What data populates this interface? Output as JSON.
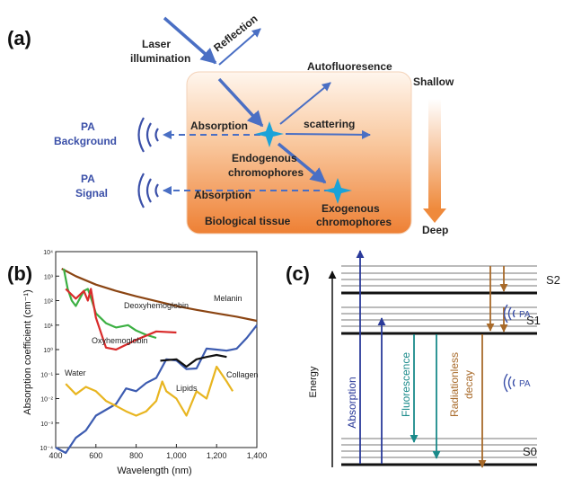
{
  "panel_a": {
    "label": "(a)",
    "laser": [
      "Laser",
      "illumination"
    ],
    "reflection": "Reflection",
    "autofluorescence": "Autofluoresence",
    "shallow": "Shallow",
    "deep": "Deep",
    "absorption1": "Absorption",
    "absorption2": "Absorption",
    "scattering": "scattering",
    "endogenous": [
      "Endogenous",
      "chromophores"
    ],
    "exogenous": [
      "Exogenous",
      "chromophores"
    ],
    "tissue": "Biological tissue",
    "pa_background": [
      "PA",
      "Background"
    ],
    "pa_signal": [
      "PA",
      "Signal"
    ],
    "colors": {
      "arrow": "#4a6fc4",
      "pa_text": "#3a4fa8",
      "star": "#1aa3d9",
      "tissue_top": "#fff1e6",
      "tissue_bottom": "#f08a3c",
      "depth_arrow": "#f08a3c"
    }
  },
  "panel_b": {
    "label": "(b)",
    "chart_data": {
      "type": "line",
      "xlabel": "Wavelength (nm)",
      "ylabel": "Absorption coefficient (cm⁻¹)",
      "xlim": [
        400,
        1400
      ],
      "ylim_log10": [
        -4,
        4
      ],
      "xticks": [
        "400",
        "600",
        "800",
        "1,000",
        "1,200",
        "1,400"
      ],
      "yticks": [
        "10⁴",
        "10³",
        "10²",
        "10¹",
        "10⁰",
        "10⁻¹",
        "10⁻²",
        "10⁻³",
        "10⁻⁴"
      ],
      "y_scale": "log",
      "series": [
        {
          "name": "Melanin",
          "color": "#8b4513",
          "x": [
            430,
            500,
            600,
            700,
            800,
            900,
            1000,
            1100,
            1200,
            1300,
            1400
          ],
          "y": [
            2000,
            1000,
            450,
            250,
            150,
            95,
            60,
            42,
            30,
            22,
            15
          ]
        },
        {
          "name": "Deoxyhemoglobin",
          "color": "#3cb043",
          "x": [
            440,
            460,
            480,
            500,
            540,
            560,
            580,
            600,
            650,
            700,
            760,
            800,
            850,
            900
          ],
          "y": [
            2000,
            300,
            100,
            60,
            250,
            300,
            100,
            30,
            12,
            8,
            10,
            6,
            4,
            3
          ]
        },
        {
          "name": "Oxyhemoglobin",
          "color": "#d92b2b",
          "x": [
            450,
            500,
            540,
            560,
            575,
            600,
            650,
            700,
            800,
            900,
            1000
          ],
          "y": [
            300,
            120,
            250,
            100,
            300,
            20,
            1.2,
            1,
            2.5,
            5.5,
            5
          ]
        },
        {
          "name": "Water",
          "color": "#3c5bb0",
          "x": [
            400,
            450,
            500,
            550,
            600,
            700,
            750,
            800,
            850,
            900,
            950,
            1000,
            1050,
            1100,
            1150,
            1200,
            1250,
            1300,
            1350,
            1400
          ],
          "y": [
            0.0001,
            6e-05,
            0.00025,
            0.0005,
            0.002,
            0.006,
            0.026,
            0.02,
            0.043,
            0.07,
            0.4,
            0.36,
            0.16,
            0.17,
            1.1,
            1.0,
            0.9,
            1.1,
            3,
            10
          ]
        },
        {
          "name": "Collagen",
          "color": "#111111",
          "x": [
            920,
            1000,
            1050,
            1100,
            1150,
            1200,
            1250
          ],
          "y": [
            0.35,
            0.4,
            0.2,
            0.4,
            0.5,
            0.6,
            0.5
          ]
        },
        {
          "name": "Lipids",
          "color": "#e8b520",
          "x": [
            450,
            500,
            550,
            600,
            650,
            700,
            750,
            800,
            850,
            900,
            930,
            950,
            1000,
            1050,
            1100,
            1150,
            1200,
            1250,
            1280
          ],
          "y": [
            0.04,
            0.015,
            0.03,
            0.02,
            0.008,
            0.005,
            0.003,
            0.002,
            0.003,
            0.008,
            0.05,
            0.02,
            0.01,
            0.002,
            0.02,
            0.01,
            0.2,
            0.05,
            0.02
          ]
        }
      ]
    }
  },
  "panel_c": {
    "label": "(c)",
    "energy": "Energy",
    "s2": "S2",
    "s1": "S1",
    "s0": "S0",
    "absorption": "Absorption",
    "fluorescence": "Fluorescence",
    "radiationless": [
      "Radiationless",
      "decay"
    ],
    "pa_upper": "PA",
    "pa_lower": "PA",
    "colors": {
      "absorption": "#2a3a9a",
      "fluorescence": "#1a8a8a",
      "radiationless": "#a86a2a",
      "pa": "#3a4fa8"
    }
  }
}
